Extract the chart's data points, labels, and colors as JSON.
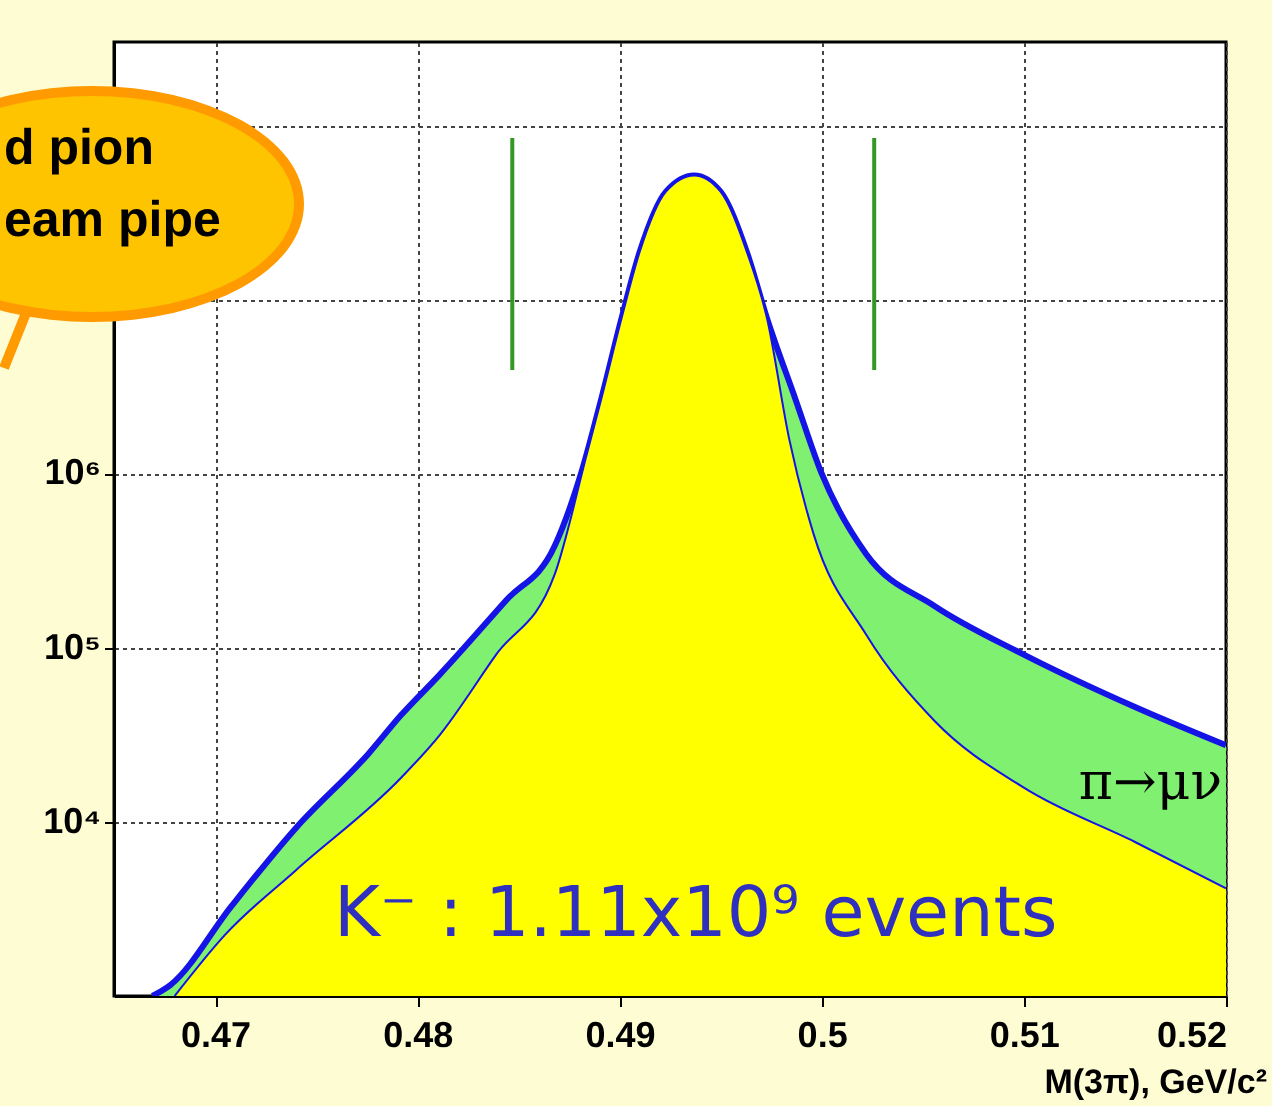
{
  "chart_data": {
    "type": "area",
    "xlabel": "M(3π), GeV/c²",
    "series": [
      {
        "name": "π→μν",
        "color": "#80f070",
        "x": [
          0.4669,
          0.4678,
          0.4708,
          0.474,
          0.4776,
          0.4792,
          0.4811,
          0.4844,
          0.4868,
          0.4881,
          0.4891,
          0.4901,
          0.491,
          0.4923,
          0.4937,
          0.495,
          0.4963,
          0.4973,
          0.4987,
          0.5,
          0.5022,
          0.5056,
          0.51,
          0.5155,
          0.52
        ],
        "values": [
          1000,
          1160,
          3270,
          9230,
          24700,
          41000,
          69800,
          187000,
          384000,
          1000000,
          2680000,
          7760000,
          18700000,
          41500000,
          51400000,
          41500000,
          18700000,
          7760000,
          2680000,
          1000000,
          345000,
          173000,
          91200,
          45600,
          27500
        ]
      },
      {
        "color": "#ffff00",
        "x": [
          0.468,
          0.4705,
          0.474,
          0.4792,
          0.4811,
          0.4839,
          0.4868,
          0.4884,
          0.4891,
          0.4901,
          0.491,
          0.4923,
          0.4937,
          0.495,
          0.4963,
          0.4973,
          0.4984,
          0.4996,
          0.5022,
          0.5056,
          0.51,
          0.5155,
          0.52
        ],
        "values": [
          1000,
          2250,
          5280,
          17900,
          31400,
          91200,
          264000,
          1310000,
          2680000,
          7760000,
          18700000,
          41500000,
          51400000,
          41500000,
          18700000,
          7760000,
          1570000,
          450000,
          119000,
          37800,
          15700,
          7660,
          4150
        ]
      }
    ],
    "xlim": [
      0.465,
      0.52
    ],
    "xticks": [
      0.47,
      0.48,
      0.49,
      0.5,
      0.51,
      0.52
    ],
    "ylim": [
      1000,
      300000000
    ],
    "yticks": [
      {
        "value": 10000,
        "label": "10⁴"
      },
      {
        "value": 100000,
        "label": "10⁵"
      },
      {
        "value": 1000000,
        "label": "10⁶"
      },
      {
        "value": 10000000,
        "label": null
      },
      {
        "value": 100000000,
        "label": null
      }
    ],
    "log": true,
    "grid": true,
    "ref_lines": [
      {
        "axis": "x",
        "value": 0.4847,
        "color": "#339922"
      },
      {
        "axis": "x",
        "value": 0.5026,
        "color": "#339922"
      }
    ],
    "annotations": [
      "d pion",
      "eam pipe",
      "K⁻ : 1.11x10⁹ events"
    ]
  }
}
